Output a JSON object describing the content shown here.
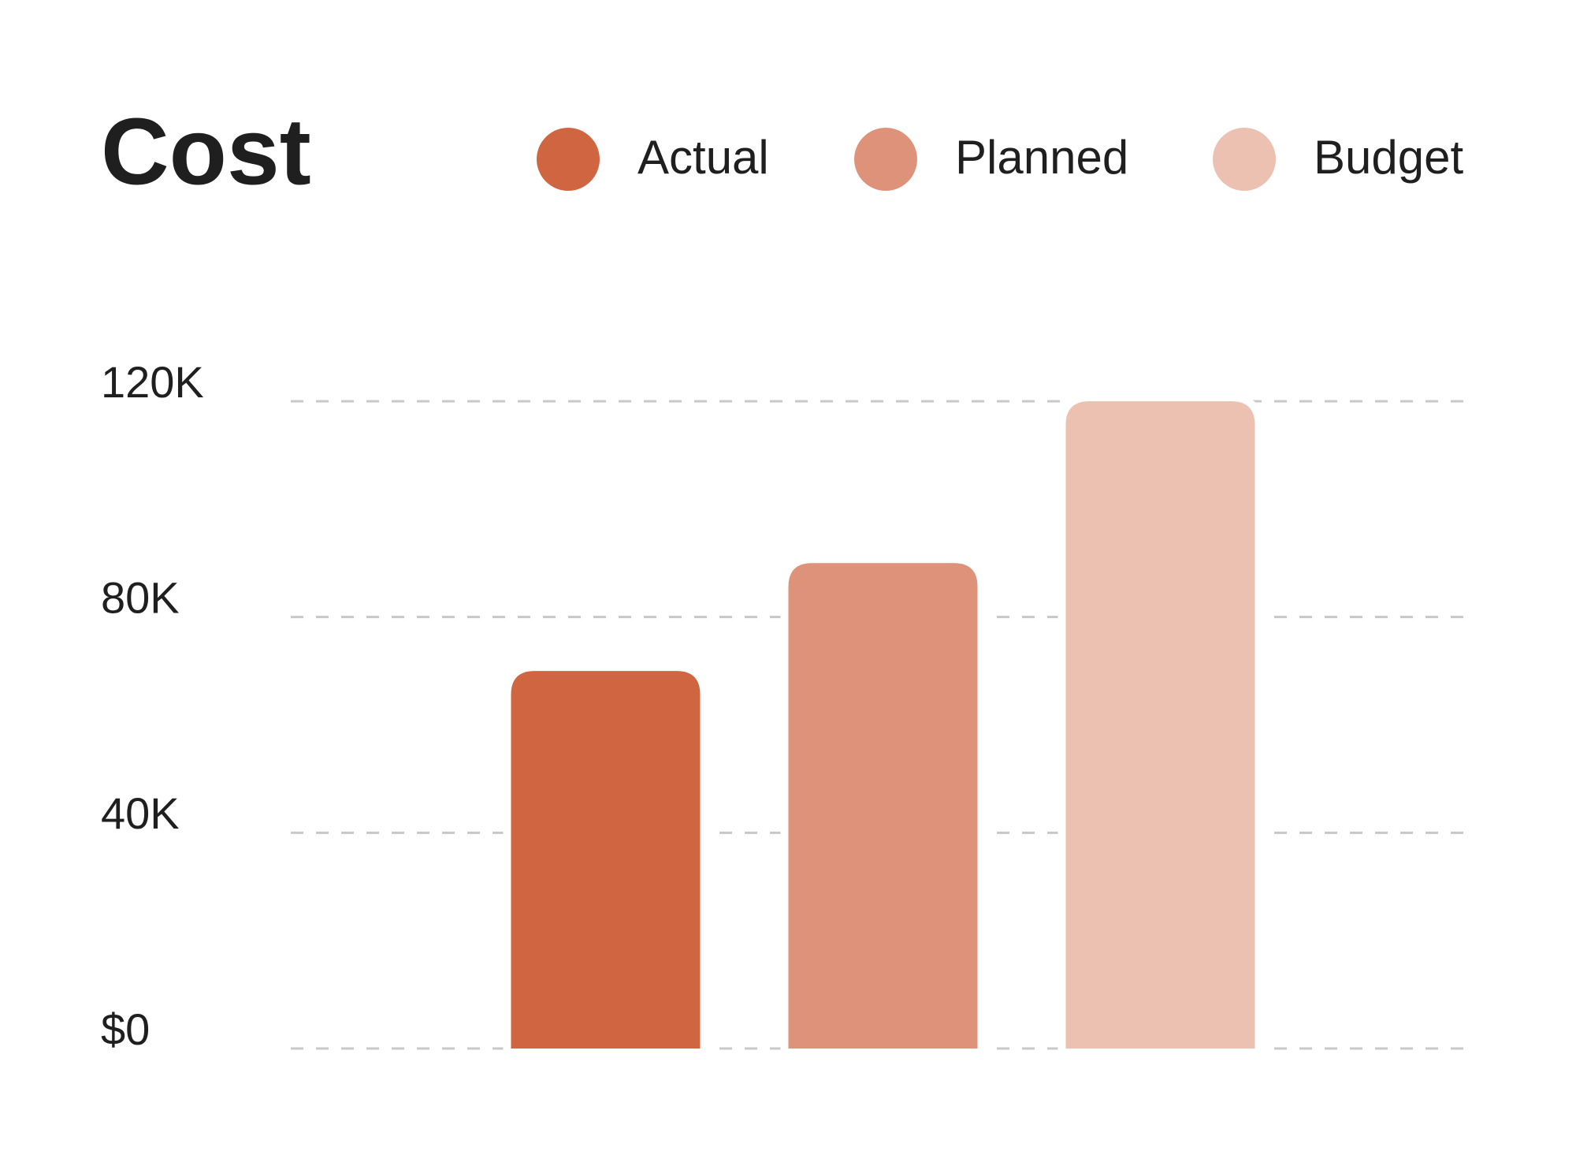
{
  "chart_data": {
    "type": "bar",
    "title": "Cost",
    "categories": [
      null
    ],
    "series": [
      {
        "name": "Actual",
        "color": "#d06541",
        "values": [
          70000
        ]
      },
      {
        "name": "Planned",
        "color": "#df927a",
        "values": [
          90000
        ]
      },
      {
        "name": "Budget",
        "color": "#ecc1b1",
        "values": [
          120000
        ]
      }
    ],
    "ylim": [
      0,
      120000
    ],
    "yticks": [
      {
        "value": 0,
        "label": "$0"
      },
      {
        "value": 40000,
        "label": "40K"
      },
      {
        "value": 80000,
        "label": "80K"
      },
      {
        "value": 120000,
        "label": "120K"
      }
    ],
    "grid": true,
    "legend": "top-right"
  }
}
